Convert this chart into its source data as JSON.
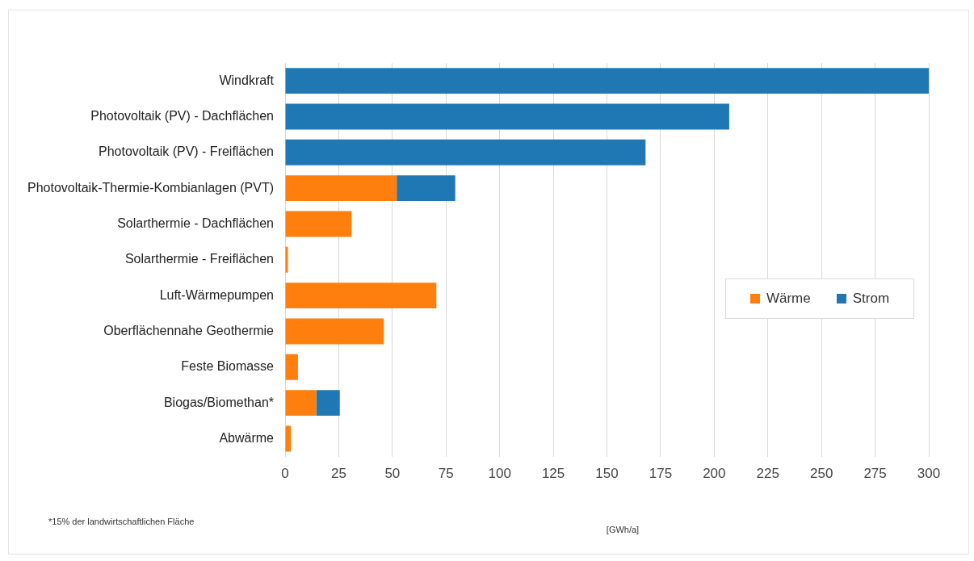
{
  "chart_data": {
    "type": "bar",
    "orientation": "horizontal",
    "stacked": true,
    "categories": [
      "Windkraft",
      "Photovoltaik (PV) - Dachflächen",
      "Photovoltaik (PV) - Freiflächen",
      "Photovoltaik-Thermie-Kombianlagen (PVT)",
      "Solarthermie - Dachflächen",
      "Solarthermie - Freiflächen",
      "Luft-Wärmepumpen",
      "Oberflächennahe Geothermie",
      "Feste Biomasse",
      "Biogas/Biomethan*",
      "Abwärme"
    ],
    "series": [
      {
        "name": "Wärme",
        "color": "#ff7f0e",
        "values": [
          null,
          null,
          null,
          52,
          31,
          1.3,
          70.5,
          46,
          6,
          14.5,
          2.7
        ]
      },
      {
        "name": "Strom",
        "color": "#1f77b4",
        "values": [
          300,
          207,
          168,
          27.3,
          null,
          null,
          null,
          null,
          null,
          11,
          null
        ]
      }
    ],
    "xlim": [
      0,
      300
    ],
    "xticks": [
      0,
      25,
      50,
      75,
      100,
      125,
      150,
      175,
      200,
      225,
      250,
      275,
      300
    ],
    "xlabel": "[GWh/a]",
    "grid": "x",
    "legend": "right",
    "annotations": [
      "*15% der landwirtschaftlichen Fläche"
    ]
  }
}
